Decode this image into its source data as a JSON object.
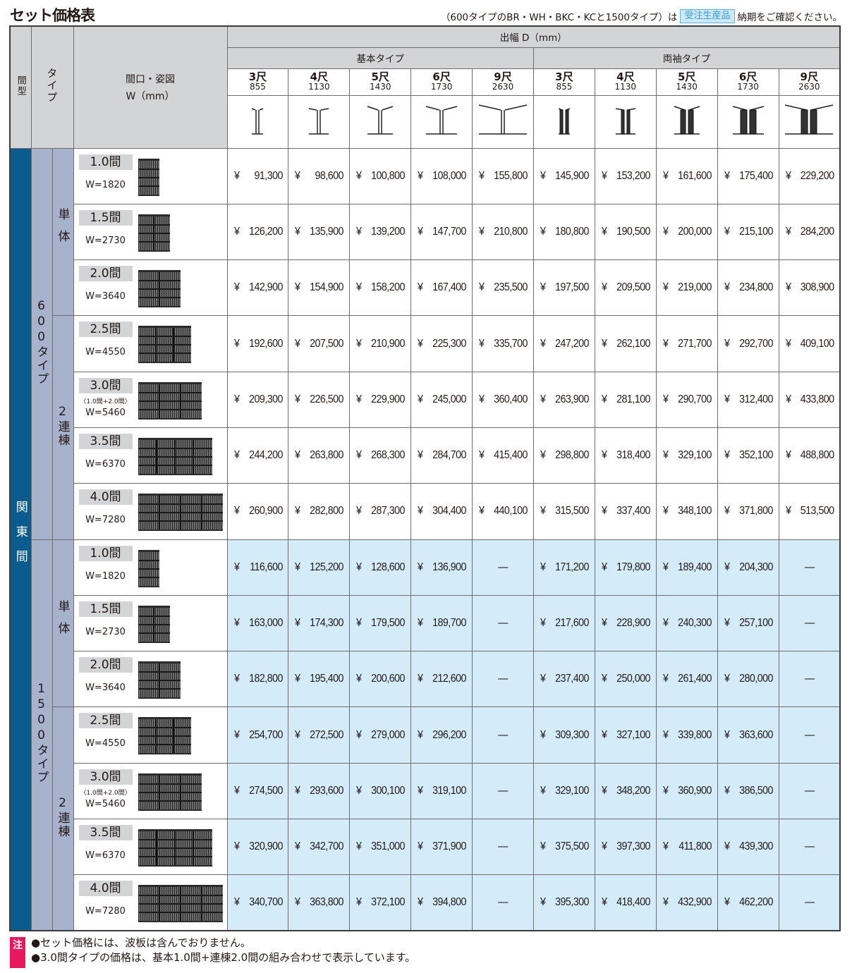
{
  "title": "セット価格表",
  "top_note": {
    "before": "（600タイプのBR・WH・BKC・KCと1500タイプ）は",
    "badge": "受注生産品",
    "after": "納期をご確認ください。"
  },
  "header": {
    "ma_kata": "間型",
    "type": "タイプ",
    "width_label": "間口・姿図",
    "width_unit": "W（mm）",
    "depth_label": "出幅 D（mm）",
    "groups": [
      "基本タイプ",
      "両袖タイプ"
    ],
    "columns": [
      {
        "shaku": "3尺",
        "mm": "855",
        "icon": "basic-type-top-view-icon"
      },
      {
        "shaku": "4尺",
        "mm": "1130",
        "icon": "basic-type-top-view-icon"
      },
      {
        "shaku": "5尺",
        "mm": "1430",
        "icon": "basic-type-top-view-icon"
      },
      {
        "shaku": "6尺",
        "mm": "1730",
        "icon": "basic-type-top-view-icon"
      },
      {
        "shaku": "9尺",
        "mm": "2630",
        "icon": "basic-type-top-view-icon"
      },
      {
        "shaku": "3尺",
        "mm": "855",
        "icon": "double-sleeve-top-view-icon"
      },
      {
        "shaku": "4尺",
        "mm": "1130",
        "icon": "double-sleeve-top-view-icon"
      },
      {
        "shaku": "5尺",
        "mm": "1430",
        "icon": "double-sleeve-top-view-icon"
      },
      {
        "shaku": "6尺",
        "mm": "1730",
        "icon": "double-sleeve-top-view-icon"
      },
      {
        "shaku": "9尺",
        "mm": "2630",
        "icon": "double-sleeve-top-view-icon"
      }
    ]
  },
  "region": "関東間",
  "colors": {
    "region": "#0a5b8e",
    "type": "#a7b3cd",
    "header": "#d3d4d6",
    "type1500_row": "#d4ecf9",
    "note_badge": "#e8185f",
    "order_badge": "#cde9f8"
  },
  "types": [
    {
      "name": "600タイプ",
      "row_style": "white",
      "groups": [
        {
          "name": "単体",
          "rows": [
            {
              "ken": "1.0間",
              "w": "W=1820",
              "prices": [
                "91,300",
                "98,600",
                "100,800",
                "108,000",
                "155,800",
                "145,900",
                "153,200",
                "161,600",
                "175,400",
                "229,200"
              ]
            },
            {
              "ken": "1.5間",
              "w": "W=2730",
              "prices": [
                "126,200",
                "135,900",
                "139,200",
                "147,700",
                "210,800",
                "180,800",
                "190,500",
                "200,000",
                "215,100",
                "284,200"
              ]
            },
            {
              "ken": "2.0間",
              "w": "W=3640",
              "prices": [
                "142,900",
                "154,900",
                "158,200",
                "167,400",
                "235,500",
                "197,500",
                "209,500",
                "219,000",
                "234,800",
                "308,900"
              ]
            }
          ]
        },
        {
          "name": "2連棟",
          "rows": [
            {
              "ken": "2.5間",
              "w": "W=4550",
              "prices": [
                "192,600",
                "207,500",
                "210,900",
                "225,300",
                "335,700",
                "247,200",
                "262,100",
                "271,700",
                "292,700",
                "409,100"
              ]
            },
            {
              "ken": "3.0間",
              "combo": "〈1.0間+2.0間〉",
              "w": "W=5460",
              "prices": [
                "209,300",
                "226,500",
                "229,900",
                "245,000",
                "360,400",
                "263,900",
                "281,100",
                "290,700",
                "312,400",
                "433,800"
              ]
            },
            {
              "ken": "3.5間",
              "w": "W=6370",
              "prices": [
                "244,200",
                "263,800",
                "268,300",
                "284,700",
                "415,400",
                "298,800",
                "318,400",
                "329,100",
                "352,100",
                "488,800"
              ]
            },
            {
              "ken": "4.0間",
              "w": "W=7280",
              "prices": [
                "260,900",
                "282,800",
                "287,300",
                "304,400",
                "440,100",
                "315,500",
                "337,400",
                "348,100",
                "371,800",
                "513,500"
              ]
            }
          ]
        }
      ]
    },
    {
      "name": "1500タイプ",
      "row_style": "blue",
      "groups": [
        {
          "name": "単体",
          "rows": [
            {
              "ken": "1.0間",
              "w": "W=1820",
              "prices": [
                "116,600",
                "125,200",
                "128,600",
                "136,900",
                "—",
                "171,200",
                "179,800",
                "189,400",
                "204,300",
                "—"
              ]
            },
            {
              "ken": "1.5間",
              "w": "W=2730",
              "prices": [
                "163,000",
                "174,300",
                "179,500",
                "189,700",
                "—",
                "217,600",
                "228,900",
                "240,300",
                "257,100",
                "—"
              ]
            },
            {
              "ken": "2.0間",
              "w": "W=3640",
              "prices": [
                "182,800",
                "195,400",
                "200,600",
                "212,600",
                "—",
                "237,400",
                "250,000",
                "261,400",
                "280,000",
                "—"
              ]
            }
          ]
        },
        {
          "name": "2連棟",
          "rows": [
            {
              "ken": "2.5間",
              "w": "W=4550",
              "prices": [
                "254,700",
                "272,500",
                "279,000",
                "296,200",
                "—",
                "309,300",
                "327,100",
                "339,800",
                "363,600",
                "—"
              ]
            },
            {
              "ken": "3.0間",
              "combo": "〈1.0間+2.0間〉",
              "w": "W=5460",
              "prices": [
                "274,500",
                "293,600",
                "300,100",
                "319,100",
                "—",
                "329,100",
                "348,200",
                "360,900",
                "386,500",
                "—"
              ]
            },
            {
              "ken": "3.5間",
              "w": "W=6370",
              "prices": [
                "320,900",
                "342,700",
                "351,000",
                "371,900",
                "—",
                "375,500",
                "397,300",
                "411,800",
                "439,300",
                "—"
              ]
            },
            {
              "ken": "4.0間",
              "w": "W=7280",
              "prices": [
                "340,700",
                "363,800",
                "372,100",
                "394,800",
                "—",
                "395,300",
                "418,400",
                "432,900",
                "462,200",
                "—"
              ]
            }
          ]
        }
      ]
    }
  ],
  "currency": "¥",
  "notes": {
    "badge": "注",
    "lines": [
      "●セット価格には、波板は含んでおりません。",
      "●3.0間タイプの価格は、基本1.0間+連棟2.0間の組み合わせで表示しています。"
    ]
  }
}
